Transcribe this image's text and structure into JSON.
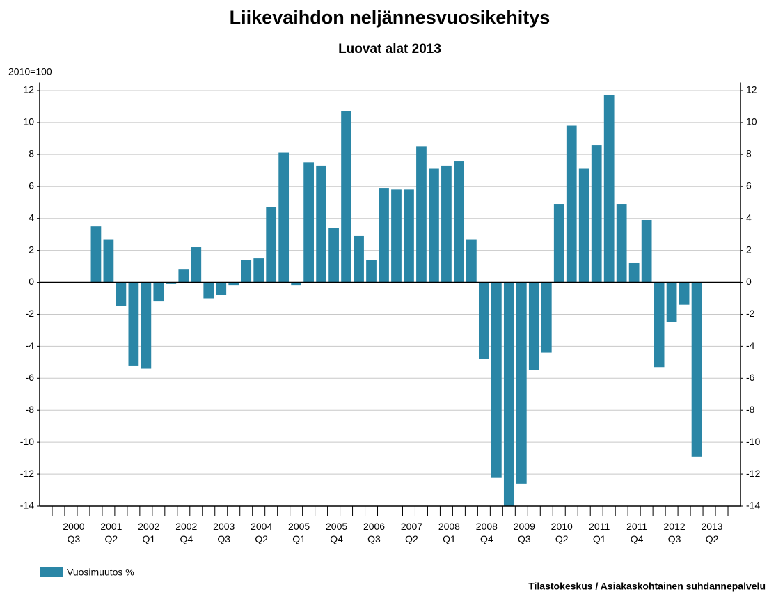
{
  "chart_data": {
    "type": "bar",
    "title": "Liikevaihdon neljännesvuosikehitys",
    "subtitle": "Luovat alat 2013",
    "y_unit_label": "2010=100",
    "source": "Tilastokeskus / Asiakaskohtainen suhdannepalvelu",
    "categories": [
      null,
      null,
      "2000 Q3",
      null,
      null,
      "2001 Q2",
      null,
      null,
      "2002 Q1",
      null,
      null,
      "2002 Q4",
      null,
      null,
      "2003 Q3",
      null,
      null,
      "2004 Q2",
      null,
      null,
      "2005 Q1",
      null,
      null,
      "2005 Q4",
      null,
      null,
      "2006 Q3",
      null,
      null,
      "2007 Q2",
      null,
      null,
      "2008 Q1",
      null,
      null,
      "2008 Q4",
      null,
      null,
      "2009 Q3",
      null,
      null,
      "2010 Q2",
      null,
      null,
      "2011 Q1",
      null,
      null,
      "2011 Q4",
      null,
      null,
      "2012 Q3",
      null,
      null,
      "2013 Q2",
      null,
      null
    ],
    "series": [
      {
        "name": "Vuosimuutos %",
        "color": "#2a86a6",
        "values": [
          null,
          null,
          null,
          null,
          3.5,
          2.7,
          -1.5,
          -5.2,
          -5.4,
          -1.2,
          -0.1,
          0.8,
          2.2,
          -1.0,
          -0.8,
          -0.2,
          1.4,
          1.5,
          4.7,
          8.1,
          -0.2,
          7.5,
          7.3,
          3.4,
          10.7,
          2.9,
          1.4,
          5.9,
          5.8,
          5.8,
          8.5,
          7.1,
          7.3,
          7.6,
          2.7,
          -4.8,
          -12.2,
          -14,
          -12.6,
          -5.5,
          -4.4,
          4.9,
          9.8,
          7.1,
          8.6,
          11.7,
          4.9,
          1.2,
          3.9,
          -5.3,
          -2.5,
          -1.4,
          -10.9,
          null,
          null,
          null
        ]
      }
    ],
    "ylim": [
      -14,
      12.5
    ],
    "yticks": [
      -14,
      -12,
      -10,
      -8,
      -6,
      -4,
      -2,
      0,
      2,
      4,
      6,
      8,
      10,
      12
    ],
    "grid": true
  }
}
